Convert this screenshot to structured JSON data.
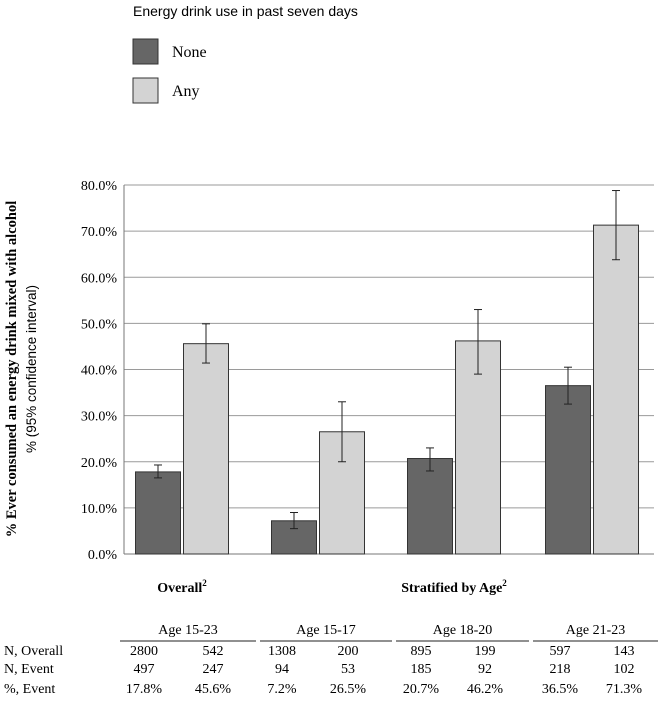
{
  "chart_data": {
    "type": "bar",
    "legend": {
      "title": "Energy drink use in past seven days",
      "entries": [
        {
          "label": "None",
          "color": "#666666"
        },
        {
          "label": "Any",
          "color": "#d3d3d3"
        }
      ],
      "placement": "top-left"
    },
    "ylabel_bold": "% Ever consumed an energy drink mixed with alcohol",
    "ylabel_sub": "% (95% confidence interval)",
    "ylim": [
      0,
      80
    ],
    "yticks": [
      "0.0%",
      "10.0%",
      "20.0%",
      "30.0%",
      "40.0%",
      "50.0%",
      "60.0%",
      "70.0%",
      "80.0%"
    ],
    "grid": true,
    "categories": [
      "Age 15-23",
      "Age 15-17",
      "Age 18-20",
      "Age 21-23"
    ],
    "series": [
      {
        "name": "None",
        "color": "#666666",
        "values": [
          17.8,
          7.2,
          20.7,
          36.5
        ],
        "ci_low": [
          16.5,
          5.5,
          18.0,
          32.5
        ],
        "ci_high": [
          19.3,
          9.0,
          23.0,
          40.5
        ]
      },
      {
        "name": "Any",
        "color": "#d3d3d3",
        "values": [
          45.6,
          26.5,
          46.2,
          71.3
        ],
        "ci_low": [
          41.4,
          20.0,
          39.0,
          63.8
        ],
        "ci_high": [
          49.9,
          33.0,
          53.0,
          78.8
        ]
      }
    ],
    "group_labels": [
      {
        "text": "Overall",
        "sup": "2"
      },
      {
        "text": "Stratified by Age",
        "sup": "2"
      }
    ],
    "table": {
      "row_labels": [
        "N, Overall",
        "N, Event",
        "%, Event"
      ],
      "rows": [
        [
          "2800",
          "542",
          "1308",
          "200",
          "895",
          "199",
          "597",
          "143"
        ],
        [
          "497",
          "247",
          "94",
          "53",
          "185",
          "92",
          "218",
          "102"
        ],
        [
          "17.8%",
          "45.6%",
          "7.2%",
          "26.5%",
          "20.7%",
          "46.2%",
          "36.5%",
          "71.3%"
        ]
      ]
    }
  }
}
